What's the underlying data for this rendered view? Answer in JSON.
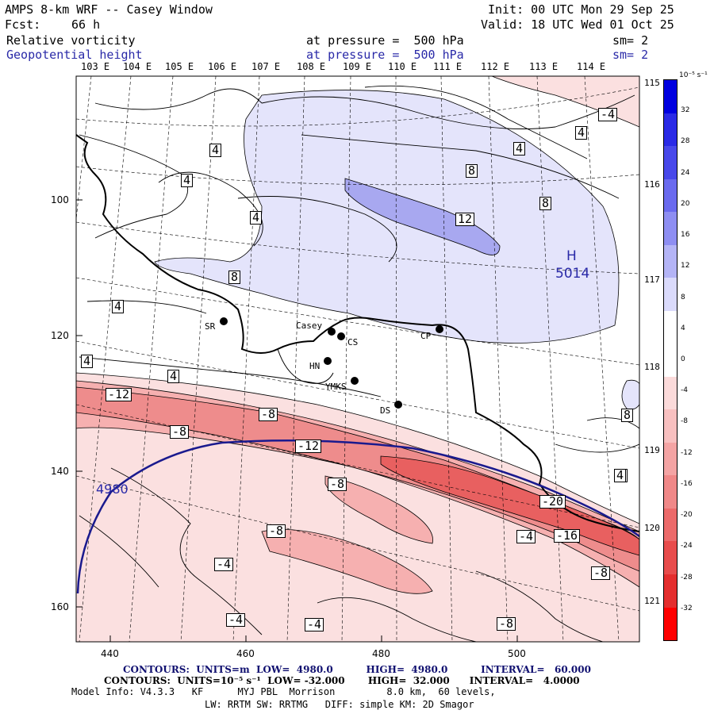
{
  "header": {
    "title": "AMPS 8-km WRF -- Casey Window",
    "fcst_label": "Fcst:",
    "fcst_value": "66 h",
    "init": "Init: 00 UTC Mon 29 Sep 25",
    "valid": "Valid: 18 UTC Wed 01 Oct 25",
    "field1": "Relative vorticity",
    "field1_level": "at pressure =  500 hPa",
    "field1_sm": "sm= 2",
    "field2": "Geopotential height",
    "field2_level": "at pressure =  500 hPa",
    "field2_sm": "sm= 2"
  },
  "map": {
    "lon_top": [
      "103 E",
      "104 E",
      "105 E",
      "106 E",
      "107 E",
      "108 E",
      "109 E",
      "110 E",
      "111 E",
      "112 E",
      "113 E",
      "114 E"
    ],
    "lon_right": [
      "115 E",
      "116 E",
      "117 E",
      "118 E",
      "119 E",
      "120 E",
      "121 E"
    ],
    "y_ticks": [
      "100",
      "120",
      "140",
      "160"
    ],
    "x_ticks": [
      "440",
      "460",
      "480",
      "500"
    ],
    "stations": [
      {
        "name": "SR"
      },
      {
        "name": "Casey"
      },
      {
        "name": "CS"
      },
      {
        "name": "CP"
      },
      {
        "name": "HN"
      },
      {
        "name": "YMKS"
      },
      {
        "name": "DS"
      }
    ],
    "contour_labels": [
      "-4",
      "4",
      "4",
      "4",
      "8",
      "4",
      "4",
      "12",
      "8",
      "8",
      "4",
      "4",
      "4",
      "4",
      "8",
      "-12",
      "-8",
      "-8",
      "-12",
      "-8",
      "4",
      "-20",
      "-16",
      "-4",
      "-8",
      "-8",
      "-4",
      "-4",
      "-4",
      "-8"
    ],
    "height_label_4980": "4980",
    "high_letter": "H",
    "high_value": "5014"
  },
  "colorbar": {
    "unit": "10⁻⁵ s⁻¹",
    "levels": [
      "32",
      "28",
      "24",
      "20",
      "16",
      "12",
      "8",
      "4",
      "0",
      "-4",
      "-8",
      "-12",
      "-16",
      "-20",
      "-24",
      "-28",
      "-32"
    ],
    "colors": [
      "#0000e0",
      "#2a2ae6",
      "#4848ea",
      "#6a6aee",
      "#8e8ef2",
      "#b4b4f6",
      "#dadafb",
      "#ffffff",
      "#ffffff",
      "#fbdada",
      "#f8c0c0",
      "#f4a4a4",
      "#f08888",
      "#ec6a6a",
      "#e84c4c",
      "#e42e2e",
      "#ff0000"
    ]
  },
  "footer": {
    "line1": "CONTOURS:  UNITS=m  LOW=  4980.0          HIGH=  4980.0          INTERVAL=   60.000",
    "line2": "CONTOURS:  UNITS=10⁻⁵ s⁻¹  LOW= -32.000       HIGH=  32.000      INTERVAL=   4.0000",
    "line3": "Model Info: V4.3.3   KF      MYJ PBL  Morrison         8.0 km,  60 levels,",
    "line4": "LW: RRTM SW: RRTMG   DIFF: simple KM: 2D Smagor"
  },
  "colors": {
    "navy": "#101070",
    "blue_label": "#2a2aa8",
    "neg_fill": "#f08888",
    "pos_fill": "#b4b4f6"
  }
}
